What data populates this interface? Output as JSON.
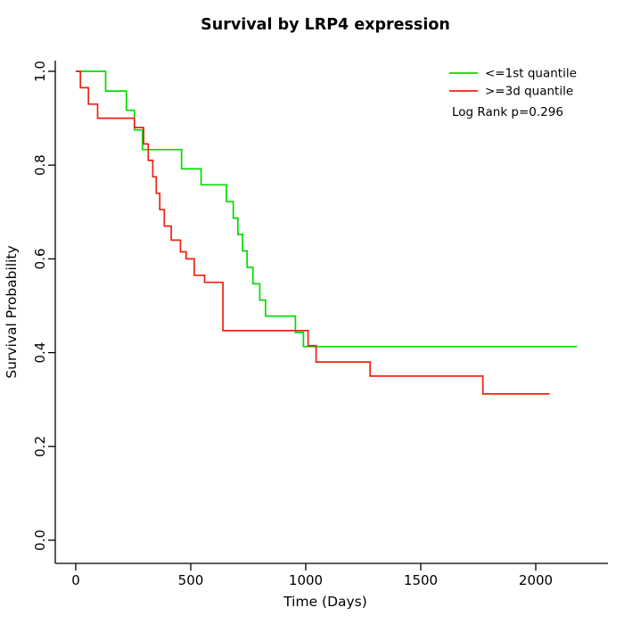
{
  "chart_data": {
    "type": "line",
    "subtype": "kaplan-meier-step",
    "title": "Survival by LRP4 expression",
    "xlabel": "Time (Days)",
    "ylabel": "Survival Probability",
    "xlim": [
      0,
      2200
    ],
    "ylim": [
      0.0,
      1.0
    ],
    "xticks": [
      0,
      500,
      1000,
      1500,
      2000
    ],
    "yticks": [
      0.0,
      0.2,
      0.4,
      0.6,
      0.8,
      1.0
    ],
    "grid": false,
    "legend_position": "top-right",
    "annotation": "Log Rank p=0.296",
    "series": [
      {
        "name": "<=1st quantile",
        "color": "#00dd00",
        "points": [
          [
            0,
            1.0
          ],
          [
            130,
            0.958
          ],
          [
            220,
            0.917
          ],
          [
            255,
            0.875
          ],
          [
            290,
            0.833
          ],
          [
            460,
            0.792
          ],
          [
            545,
            0.758
          ],
          [
            655,
            0.722
          ],
          [
            685,
            0.687
          ],
          [
            705,
            0.652
          ],
          [
            725,
            0.617
          ],
          [
            745,
            0.582
          ],
          [
            770,
            0.547
          ],
          [
            800,
            0.512
          ],
          [
            825,
            0.478
          ],
          [
            955,
            0.443
          ],
          [
            990,
            0.413
          ],
          [
            2180,
            0.413
          ]
        ]
      },
      {
        "name": ">=3d quantile",
        "color": "#ee2211",
        "points": [
          [
            0,
            1.0
          ],
          [
            20,
            0.965
          ],
          [
            55,
            0.93
          ],
          [
            95,
            0.9
          ],
          [
            255,
            0.88
          ],
          [
            295,
            0.845
          ],
          [
            315,
            0.81
          ],
          [
            335,
            0.775
          ],
          [
            350,
            0.74
          ],
          [
            365,
            0.705
          ],
          [
            385,
            0.67
          ],
          [
            415,
            0.64
          ],
          [
            455,
            0.615
          ],
          [
            480,
            0.6
          ],
          [
            515,
            0.565
          ],
          [
            560,
            0.55
          ],
          [
            640,
            0.447
          ],
          [
            1010,
            0.415
          ],
          [
            1045,
            0.38
          ],
          [
            1280,
            0.35
          ],
          [
            1770,
            0.312
          ],
          [
            2060,
            0.312
          ]
        ]
      }
    ]
  }
}
